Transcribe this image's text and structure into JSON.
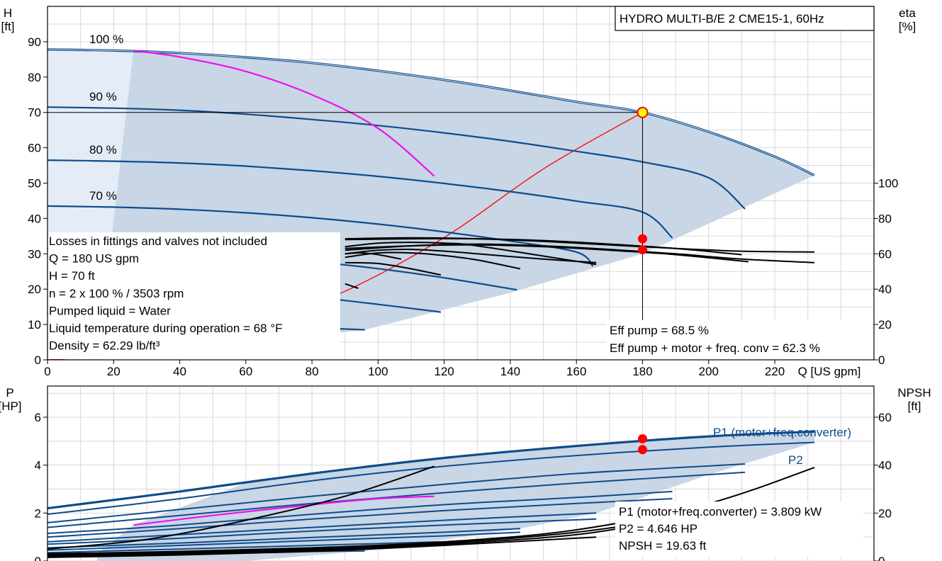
{
  "title": "HYDRO MULTI-B/E 2 CME15-1, 60Hz",
  "colors": {
    "band": "#c8d6e6",
    "band_light": "#e4edf7",
    "curve": "#0e4c8a",
    "magenta": "#ee11ee",
    "red": "#ff0000",
    "grid": "#d8d8d8",
    "duty_fill": "#ffff00"
  },
  "chart_data": [
    {
      "type": "line",
      "id": "head",
      "xlabel": "Q [US gpm]",
      "ylabel": "H\n[ft]",
      "y2label": "eta\n[%]",
      "xlim": [
        0,
        250
      ],
      "ylim": [
        0,
        100
      ],
      "y2lim": [
        0,
        200
      ],
      "xticks": [
        0,
        20,
        40,
        60,
        80,
        100,
        120,
        140,
        160,
        180,
        200,
        220
      ],
      "yticks": [
        0,
        10,
        20,
        30,
        40,
        50,
        60,
        70,
        80,
        90
      ],
      "y2ticks": [
        0,
        20,
        40,
        60,
        80,
        100
      ],
      "grid": true,
      "speed_labels": [
        "100 %",
        "90 %",
        "80 %",
        "70 %"
      ],
      "series": [
        {
          "name": "100 %",
          "x": [
            0,
            20,
            40,
            60,
            80,
            100,
            120,
            140,
            160,
            180,
            200,
            220,
            232
          ],
          "y": [
            87.8,
            87.5,
            86.8,
            85.6,
            84.0,
            81.8,
            79.2,
            76.2,
            73.0,
            70.0,
            64.5,
            57.5,
            52.2
          ]
        },
        {
          "name": "90 %",
          "x": [
            0,
            20,
            40,
            60,
            80,
            100,
            120,
            140,
            160,
            180,
            200,
            211
          ],
          "y": [
            71.5,
            71.2,
            70.6,
            69.5,
            68.0,
            66.3,
            64.2,
            61.8,
            59.0,
            56.0,
            51.5,
            42.7
          ]
        },
        {
          "name": "80 %",
          "x": [
            0,
            20,
            40,
            60,
            80,
            100,
            120,
            140,
            160,
            180,
            189
          ],
          "y": [
            56.5,
            56.2,
            55.7,
            54.8,
            53.5,
            51.9,
            49.9,
            47.6,
            44.9,
            41.8,
            34.5
          ]
        },
        {
          "name": "70 %",
          "x": [
            0,
            20,
            40,
            60,
            80,
            100,
            120,
            140,
            160,
            165
          ],
          "y": [
            43.5,
            43.2,
            42.6,
            41.6,
            40.2,
            38.4,
            36.2,
            33.6,
            30.5,
            26.5
          ]
        },
        {
          "x": [
            0,
            20,
            40,
            60,
            80,
            100,
            120,
            142
          ],
          "y": [
            31.5,
            31.1,
            30.4,
            29.3,
            27.8,
            25.8,
            23.2,
            19.8
          ]
        },
        {
          "x": [
            0,
            20,
            40,
            60,
            80,
            100,
            119
          ],
          "y": [
            21.5,
            21.1,
            20.4,
            19.3,
            17.8,
            15.7,
            13.5
          ]
        },
        {
          "x": [
            0,
            20,
            40,
            60,
            80,
            96
          ],
          "y": [
            13.0,
            12.6,
            11.9,
            10.8,
            9.2,
            8.5
          ]
        }
      ],
      "system_curve": {
        "x": [
          0,
          30,
          60,
          90,
          120,
          150,
          180
        ],
        "y": [
          0,
          2.2,
          8.6,
          19.4,
          34.6,
          54.0,
          70.0
        ]
      },
      "magenta_curve": {
        "x": [
          26,
          40,
          60,
          80,
          100,
          117
        ],
        "y": [
          87.5,
          85.7,
          81.6,
          75.0,
          65.5,
          52.0
        ]
      },
      "eta_curves": [
        {
          "x": [
            90,
            110,
            130,
            150,
            170,
            190,
            210
          ],
          "y": [
            68,
            68.5,
            68.5,
            67.5,
            65.5,
            63,
            59.5
          ]
        },
        {
          "x": [
            90,
            110,
            130,
            150,
            170,
            190,
            212
          ],
          "y": [
            63,
            64.5,
            65,
            64,
            62,
            59.5,
            55.5
          ]
        },
        {
          "x": [
            90,
            110,
            130,
            150,
            170,
            190,
            210,
            232
          ],
          "y": [
            62,
            64.5,
            65.5,
            64.5,
            62.5,
            60,
            57,
            55
          ]
        },
        {
          "x": [
            90,
            110,
            130,
            150,
            170,
            190,
            210,
            232
          ],
          "y": [
            68.5,
            69,
            68.5,
            67,
            65,
            63,
            61.5,
            61
          ]
        },
        {
          "x": [
            90,
            100,
            110,
            120,
            130,
            143
          ],
          "y": [
            58,
            60.5,
            60.5,
            59,
            56.5,
            51.5
          ]
        },
        {
          "x": [
            90,
            100,
            110,
            120,
            130,
            166
          ],
          "y": [
            64,
            66,
            66.5,
            66,
            64.5,
            54
          ]
        },
        {
          "x": [
            90,
            100,
            110,
            119
          ],
          "y": [
            55,
            54.5,
            51.5,
            48
          ]
        },
        {
          "x": [
            90,
            100,
            110,
            120,
            130,
            150,
            166
          ],
          "y": [
            60,
            62,
            62.5,
            61.5,
            60,
            57,
            55
          ]
        },
        {
          "x": [
            90,
            95,
            100,
            107
          ],
          "y": [
            60,
            60.5,
            59.5,
            57
          ]
        },
        {
          "x": [
            90,
            94
          ],
          "y": [
            43,
            40.5
          ]
        }
      ],
      "duty_point": {
        "x": 180,
        "y": 70
      },
      "eta_points": [
        {
          "x": 180,
          "y": 68.5
        },
        {
          "x": 180,
          "y": 62.3
        }
      ],
      "info_box": [
        "Losses in fittings and valves not included",
        "Q = 180 US gpm",
        "H = 70 ft",
        "n = 2 x 100 % / 3503 rpm",
        "Pumped liquid = Water",
        "Liquid temperature during operation = 68 °F",
        "Density = 62.29 lb/ft³"
      ],
      "eff_text": [
        "Eff pump = 68.5 %",
        "Eff pump + motor + freq. conv = 62.3 %"
      ]
    },
    {
      "type": "line",
      "id": "power",
      "ylabel": "P\n[HP]",
      "y2label": "NPSH\n[ft]",
      "xlim": [
        0,
        250
      ],
      "ylim": [
        0,
        7.3
      ],
      "y2lim": [
        0,
        73
      ],
      "yticks": [
        0,
        2,
        4,
        6
      ],
      "y2ticks": [
        0,
        20,
        40,
        60
      ],
      "grid": true,
      "series": [
        {
          "name": "P1 (motor+freq.converter)",
          "x": [
            0,
            40,
            80,
            120,
            160,
            200,
            232
          ],
          "y": [
            2.2,
            2.9,
            3.65,
            4.3,
            4.8,
            5.2,
            5.4
          ]
        },
        {
          "name": "P2",
          "x": [
            0,
            40,
            80,
            120,
            160,
            200,
            232
          ],
          "y": [
            1.95,
            2.6,
            3.35,
            3.95,
            4.4,
            4.75,
            4.95
          ]
        },
        {
          "x": [
            0,
            40,
            80,
            120,
            160,
            211
          ],
          "y": [
            1.6,
            2.15,
            2.7,
            3.2,
            3.65,
            4.05
          ]
        },
        {
          "x": [
            0,
            40,
            80,
            120,
            160,
            211
          ],
          "y": [
            1.4,
            1.9,
            2.4,
            2.85,
            3.25,
            3.7
          ]
        },
        {
          "x": [
            0,
            40,
            80,
            120,
            160,
            189
          ],
          "y": [
            1.15,
            1.5,
            1.95,
            2.35,
            2.65,
            2.9
          ]
        },
        {
          "x": [
            0,
            40,
            80,
            120,
            160,
            189
          ],
          "y": [
            1.0,
            1.35,
            1.75,
            2.1,
            2.4,
            2.6
          ]
        },
        {
          "x": [
            0,
            40,
            80,
            120,
            166
          ],
          "y": [
            0.8,
            1.1,
            1.4,
            1.7,
            2.0
          ]
        },
        {
          "x": [
            0,
            40,
            80,
            120,
            166
          ],
          "y": [
            0.7,
            0.95,
            1.25,
            1.5,
            1.75
          ]
        },
        {
          "x": [
            0,
            40,
            80,
            120,
            143
          ],
          "y": [
            0.55,
            0.75,
            0.98,
            1.2,
            1.35
          ]
        },
        {
          "x": [
            0,
            40,
            80,
            120,
            143
          ],
          "y": [
            0.45,
            0.65,
            0.85,
            1.05,
            1.2
          ]
        },
        {
          "x": [
            0,
            40,
            80,
            119
          ],
          "y": [
            0.35,
            0.5,
            0.65,
            0.8
          ]
        },
        {
          "x": [
            0,
            40,
            80,
            96
          ],
          "y": [
            0.25,
            0.32,
            0.4,
            0.42
          ]
        }
      ],
      "magenta_curve": {
        "x": [
          26,
          50,
          80,
          100,
          117
        ],
        "y": [
          1.5,
          1.9,
          2.35,
          2.6,
          2.7
        ]
      },
      "npsh_curves": [
        {
          "x": [
            0,
            30,
            60,
            90,
            117
          ],
          "y": [
            5,
            9,
            17,
            27,
            39.5
          ]
        },
        {
          "x": [
            0,
            40,
            80,
            120,
            160,
            200,
            232
          ],
          "y": [
            3,
            4,
            5.5,
            8,
            13,
            24,
            39
          ]
        },
        {
          "x": [
            0,
            40,
            80,
            120,
            160,
            200,
            211
          ],
          "y": [
            2.5,
            3.5,
            5,
            7.5,
            12,
            20,
            22.5
          ]
        },
        {
          "x": [
            0,
            40,
            80,
            120,
            160,
            189
          ],
          "y": [
            2,
            3,
            4.5,
            7,
            11,
            17.5
          ]
        },
        {
          "x": [
            0,
            40,
            80,
            120,
            166
          ],
          "y": [
            1.5,
            2.5,
            4,
            6.5,
            10
          ]
        }
      ],
      "labels": [
        "P1 (motor+freq.converter)",
        "P2"
      ],
      "points": [
        {
          "x": 180,
          "y": 5.1
        },
        {
          "x": 180,
          "y": 4.646
        }
      ],
      "info_box": [
        "P1 (motor+freq.converter) = 3.809 kW",
        "P2 = 4.646 HP",
        "NPSH = 19.63 ft"
      ]
    }
  ]
}
